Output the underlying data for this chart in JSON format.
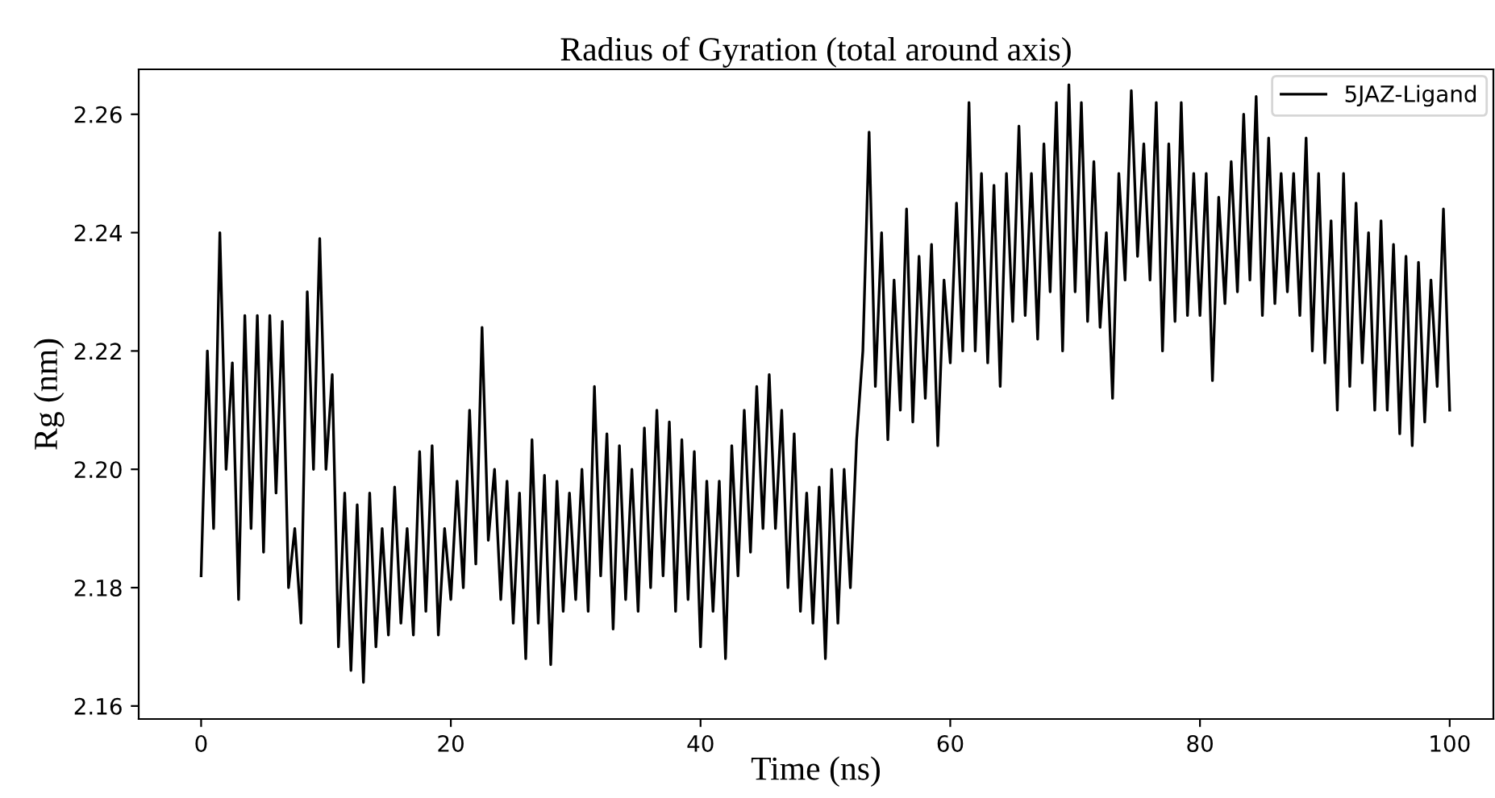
{
  "chart_data": {
    "type": "line",
    "title": "Radius of Gyration (total around axis)",
    "xlabel": "Time (ns)",
    "ylabel": "Rg (nm)",
    "xlim": [
      -5,
      103.5
    ],
    "ylim": [
      2.1578,
      2.2676
    ],
    "xticks": [
      0,
      20,
      40,
      60,
      80,
      100
    ],
    "yticks": [
      {
        "value": 2.16,
        "label": "2.16"
      },
      {
        "value": 2.18,
        "label": "2.18"
      },
      {
        "value": 2.2,
        "label": "2.20"
      },
      {
        "value": 2.22,
        "label": "2.22"
      },
      {
        "value": 2.24,
        "label": "2.24"
      },
      {
        "value": 2.26,
        "label": "2.26"
      }
    ],
    "legend": "top right",
    "grid": false,
    "series": [
      {
        "name": "5JAZ-Ligand",
        "color": "#000000",
        "x": [
          0,
          0.5,
          1,
          1.5,
          2,
          2.5,
          3,
          3.5,
          4,
          4.5,
          5,
          5.5,
          6,
          6.5,
          7,
          7.5,
          8,
          8.5,
          9,
          9.5,
          10,
          10.5,
          11,
          11.5,
          12,
          12.5,
          13,
          13.5,
          14,
          14.5,
          15,
          15.5,
          16,
          16.5,
          17,
          17.5,
          18,
          18.5,
          19,
          19.5,
          20,
          20.5,
          21,
          21.5,
          22,
          22.5,
          23,
          23.5,
          24,
          24.5,
          25,
          25.5,
          26,
          26.5,
          27,
          27.5,
          28,
          28.5,
          29,
          29.5,
          30,
          30.5,
          31,
          31.5,
          32,
          32.5,
          33,
          33.5,
          34,
          34.5,
          35,
          35.5,
          36,
          36.5,
          37,
          37.5,
          38,
          38.5,
          39,
          39.5,
          40,
          40.5,
          41,
          41.5,
          42,
          42.5,
          43,
          43.5,
          44,
          44.5,
          45,
          45.5,
          46,
          46.5,
          47,
          47.5,
          48,
          48.5,
          49,
          49.5,
          50,
          50.5,
          51,
          51.5,
          52,
          52.5,
          53,
          53.5,
          54,
          54.5,
          55,
          55.5,
          56,
          56.5,
          57,
          57.5,
          58,
          58.5,
          59,
          59.5,
          60,
          60.5,
          61,
          61.5,
          62,
          62.5,
          63,
          63.5,
          64,
          64.5,
          65,
          65.5,
          66,
          66.5,
          67,
          67.5,
          68,
          68.5,
          69,
          69.5,
          70,
          70.5,
          71,
          71.5,
          72,
          72.5,
          73,
          73.5,
          74,
          74.5,
          75,
          75.5,
          76,
          76.5,
          77,
          77.5,
          78,
          78.5,
          79,
          79.5,
          80,
          80.5,
          81,
          81.5,
          82,
          82.5,
          83,
          83.5,
          84,
          84.5,
          85,
          85.5,
          86,
          86.5,
          87,
          87.5,
          88,
          88.5,
          89,
          89.5,
          90,
          90.5,
          91,
          91.5,
          92,
          92.5,
          93,
          93.5,
          94,
          94.5,
          95,
          95.5,
          96,
          96.5,
          97,
          97.5,
          98,
          98.5,
          99,
          99.5,
          100
        ],
        "values": [
          2.182,
          2.22,
          2.19,
          2.24,
          2.2,
          2.218,
          2.178,
          2.226,
          2.19,
          2.226,
          2.186,
          2.226,
          2.196,
          2.225,
          2.18,
          2.19,
          2.174,
          2.23,
          2.2,
          2.239,
          2.2,
          2.216,
          2.17,
          2.196,
          2.166,
          2.194,
          2.164,
          2.196,
          2.17,
          2.19,
          2.172,
          2.197,
          2.174,
          2.19,
          2.172,
          2.203,
          2.176,
          2.204,
          2.172,
          2.19,
          2.178,
          2.198,
          2.18,
          2.21,
          2.184,
          2.224,
          2.188,
          2.2,
          2.178,
          2.198,
          2.174,
          2.196,
          2.168,
          2.205,
          2.174,
          2.199,
          2.167,
          2.198,
          2.176,
          2.196,
          2.178,
          2.2,
          2.176,
          2.214,
          2.182,
          2.206,
          2.173,
          2.204,
          2.178,
          2.2,
          2.176,
          2.207,
          2.18,
          2.21,
          2.182,
          2.208,
          2.176,
          2.205,
          2.178,
          2.203,
          2.17,
          2.198,
          2.176,
          2.198,
          2.168,
          2.204,
          2.182,
          2.21,
          2.186,
          2.214,
          2.19,
          2.216,
          2.19,
          2.21,
          2.18,
          2.206,
          2.176,
          2.196,
          2.174,
          2.197,
          2.168,
          2.2,
          2.174,
          2.2,
          2.18,
          2.205,
          2.22,
          2.257,
          2.214,
          2.24,
          2.205,
          2.232,
          2.21,
          2.244,
          2.208,
          2.236,
          2.212,
          2.238,
          2.204,
          2.232,
          2.218,
          2.245,
          2.22,
          2.262,
          2.22,
          2.25,
          2.218,
          2.248,
          2.214,
          2.25,
          2.225,
          2.258,
          2.226,
          2.25,
          2.222,
          2.255,
          2.23,
          2.262,
          2.22,
          2.265,
          2.23,
          2.262,
          2.225,
          2.252,
          2.224,
          2.24,
          2.212,
          2.25,
          2.232,
          2.264,
          2.236,
          2.255,
          2.232,
          2.262,
          2.22,
          2.255,
          2.225,
          2.262,
          2.226,
          2.25,
          2.226,
          2.25,
          2.215,
          2.246,
          2.228,
          2.252,
          2.23,
          2.26,
          2.232,
          2.263,
          2.226,
          2.256,
          2.228,
          2.25,
          2.23,
          2.25,
          2.226,
          2.256,
          2.22,
          2.25,
          2.218,
          2.242,
          2.21,
          2.25,
          2.214,
          2.245,
          2.218,
          2.24,
          2.21,
          2.242,
          2.21,
          2.238,
          2.206,
          2.236,
          2.204,
          2.235,
          2.208,
          2.232,
          2.214,
          2.244,
          2.21
        ]
      }
    ]
  }
}
